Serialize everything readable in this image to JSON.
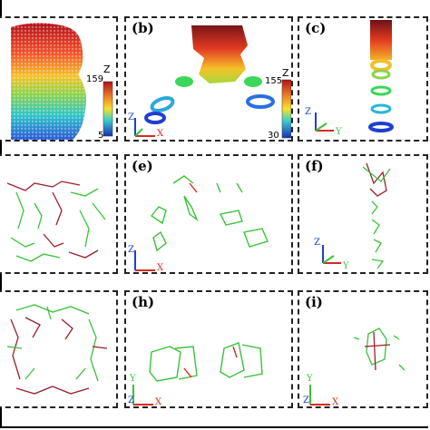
{
  "panels": [
    {
      "id": "a",
      "label": "",
      "colorbar": {
        "top": "159",
        "bottom": "5",
        "axis": "Z"
      }
    },
    {
      "id": "b",
      "label": "(b)",
      "colorbar": {
        "top": "155",
        "bottom": "30",
        "axis": "Z"
      },
      "axes": {
        "z": "Z",
        "x": "X"
      }
    },
    {
      "id": "c",
      "label": "(c)",
      "axes": {
        "z": "Z",
        "x": "X",
        "y": "Y"
      }
    },
    {
      "id": "d",
      "label": ""
    },
    {
      "id": "e",
      "label": "(e)",
      "axes": {
        "z": "Z",
        "x": "X"
      }
    },
    {
      "id": "f",
      "label": "(f)",
      "axes": {
        "z": "Z",
        "x": "X",
        "y": "Y"
      }
    },
    {
      "id": "g",
      "label": ""
    },
    {
      "id": "h",
      "label": "(h)",
      "axes": {
        "y": "Y",
        "z": "Z",
        "x": "X"
      }
    },
    {
      "id": "i",
      "label": "(i)",
      "axes": {
        "y": "Y",
        "z": "Z",
        "x": "X"
      }
    }
  ],
  "colors": {
    "red": "#d62a1e",
    "green": "#3ac23a",
    "blue": "#1f3fd0",
    "dark_red": "#9c1f2a",
    "olive": "#8a7a2a"
  }
}
